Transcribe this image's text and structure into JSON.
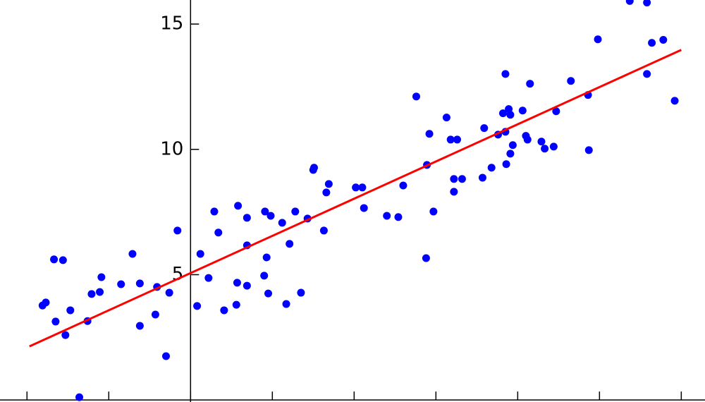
{
  "chart_data": {
    "type": "scatter",
    "xlim": [
      -2.33,
      6.29
    ],
    "ylim": [
      -0.08,
      15.96
    ],
    "xticks": [
      -2,
      -1,
      0,
      1,
      2,
      3,
      4,
      5,
      6
    ],
    "yticks": [
      5,
      10,
      15
    ],
    "series": [
      {
        "type": "scatter",
        "color": "#0000ff",
        "x": [
          -1.81,
          -1.77,
          -1.67,
          -1.56,
          -1.65,
          -1.53,
          -1.47,
          -1.26,
          -1.21,
          -1.11,
          -1.09,
          -0.85,
          -0.71,
          -0.62,
          -0.62,
          -0.41,
          -0.43,
          -0.3,
          -0.26,
          -0.16,
          -1.36,
          0.08,
          0.12,
          0.22,
          0.29,
          0.34,
          0.41,
          0.56,
          0.58,
          0.57,
          0.69,
          0.69,
          0.69,
          0.9,
          0.91,
          0.93,
          0.95,
          0.98,
          1.12,
          1.17,
          1.21,
          1.28,
          1.35,
          1.43,
          1.51,
          1.5,
          1.63,
          1.66,
          1.69,
          2.02,
          2.1,
          2.12,
          2.4,
          2.54,
          2.6,
          2.76,
          2.88,
          2.89,
          2.92,
          2.97,
          3.13,
          3.18,
          3.26,
          3.22,
          3.22,
          3.32,
          3.57,
          3.59,
          3.68,
          3.76,
          3.82,
          3.85,
          3.85,
          3.86,
          3.89,
          3.91,
          3.91,
          3.94,
          4.06,
          4.1,
          4.12,
          4.15,
          4.29,
          4.33,
          4.44,
          4.47,
          4.65,
          4.86,
          4.87,
          4.98,
          5.37,
          5.58,
          5.58,
          5.64,
          5.78,
          5.92
        ],
        "values": [
          3.77,
          3.89,
          5.61,
          5.58,
          3.13,
          2.59,
          3.58,
          3.15,
          4.23,
          4.31,
          4.9,
          4.62,
          5.83,
          4.65,
          2.96,
          4.51,
          3.41,
          1.75,
          4.28,
          6.76,
          0.11,
          3.75,
          5.83,
          4.87,
          7.52,
          6.68,
          3.58,
          3.8,
          7.75,
          4.68,
          6.17,
          4.56,
          7.27,
          4.96,
          7.52,
          5.69,
          4.25,
          7.35,
          7.07,
          3.83,
          6.23,
          7.52,
          4.28,
          7.24,
          9.27,
          9.18,
          6.76,
          8.28,
          8.62,
          8.48,
          8.48,
          7.66,
          7.35,
          7.3,
          8.56,
          12.11,
          5.66,
          9.38,
          10.62,
          7.52,
          11.27,
          10.39,
          10.39,
          8.82,
          8.31,
          8.82,
          8.87,
          10.85,
          9.27,
          10.59,
          11.44,
          13.01,
          10.7,
          9.41,
          11.61,
          11.38,
          9.83,
          10.17,
          11.55,
          10.54,
          10.39,
          12.62,
          10.31,
          10.03,
          10.11,
          11.52,
          12.73,
          12.17,
          9.97,
          14.39,
          15.92,
          15.86,
          13.01,
          14.25,
          14.37,
          11.94
        ]
      },
      {
        "type": "line",
        "color": "#ff0000",
        "x": [
          -1.97,
          6.0
        ],
        "values": [
          2.14,
          13.97
        ]
      }
    ]
  }
}
